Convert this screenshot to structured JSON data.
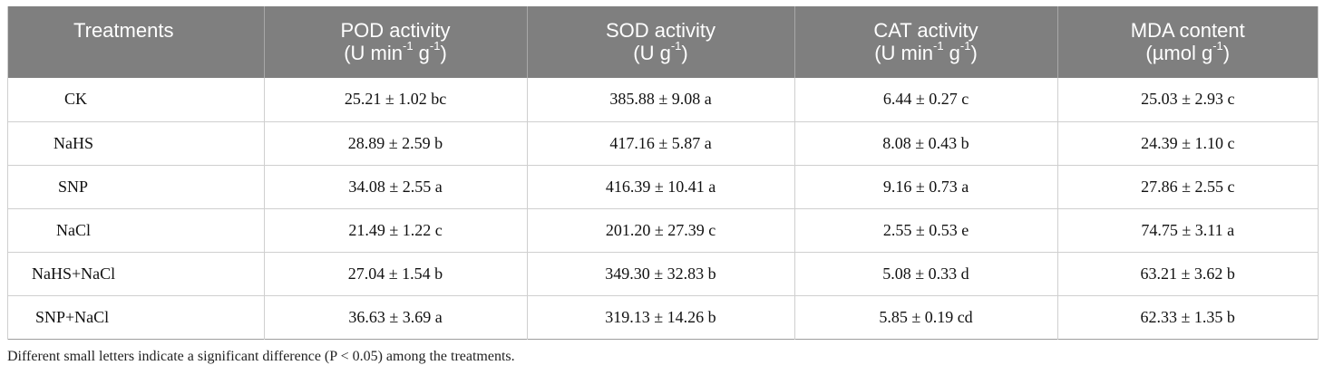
{
  "table": {
    "headers": [
      {
        "name": "Treatments",
        "unit": "",
        "unit_sup": ""
      },
      {
        "name": "POD activity",
        "unit_pre": "(U min",
        "sup1": "-1",
        "unit_mid": " g",
        "sup2": "-1",
        "unit_post": ")"
      },
      {
        "name": "SOD activity",
        "unit_pre": "(U g",
        "sup1": "-1",
        "unit_mid": "",
        "sup2": "",
        "unit_post": ")"
      },
      {
        "name": "CAT activity",
        "unit_pre": "(U min",
        "sup1": "-1",
        "unit_mid": " g",
        "sup2": "-1",
        "unit_post": ")"
      },
      {
        "name": "MDA content",
        "unit_pre": "(µmol g",
        "sup1": "-1",
        "unit_mid": "",
        "sup2": "",
        "unit_post": ")"
      }
    ],
    "rows": [
      [
        "CK",
        "25.21 ± 1.02 bc",
        "385.88 ± 9.08 a",
        "6.44 ± 0.27 c",
        "25.03 ± 2.93 c"
      ],
      [
        "NaHS",
        "28.89 ± 2.59 b",
        "417.16 ± 5.87 a",
        "8.08 ± 0.43 b",
        "24.39 ± 1.10 c"
      ],
      [
        "SNP",
        "34.08 ± 2.55 a",
        "416.39 ± 10.41 a",
        "9.16 ± 0.73 a",
        "27.86 ± 2.55 c"
      ],
      [
        "NaCl",
        "21.49 ± 1.22 c",
        "201.20 ± 27.39 c",
        "2.55 ± 0.53 e",
        "74.75 ± 3.11 a"
      ],
      [
        "NaHS+NaCl",
        "27.04 ± 1.54 b",
        "349.30 ± 32.83 b",
        "5.08 ± 0.33 d",
        "63.21 ± 3.62 b"
      ],
      [
        "SNP+NaCl",
        "36.63 ± 3.69 a",
        "319.13 ± 14.26 b",
        "5.85 ± 0.19 cd",
        "62.33 ± 1.35 b"
      ]
    ]
  },
  "footnote": "Different small letters indicate a significant difference (P < 0.05) among the treatments."
}
